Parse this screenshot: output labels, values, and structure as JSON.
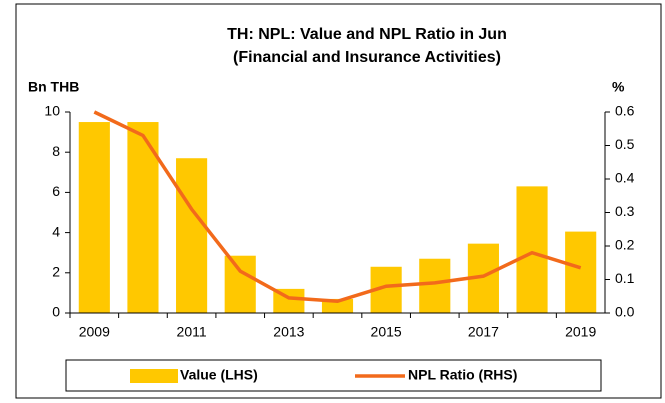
{
  "chart_data": {
    "type": "bar_line",
    "title": "TH: NPL: Value and NPL Ratio in Jun",
    "subtitle": "(Financial and Insurance Activities)",
    "y_label": "Bn THB",
    "y2_label": "%",
    "categories": [
      "2009",
      null,
      "2011",
      null,
      "2013",
      null,
      "2015",
      null,
      "2017",
      null,
      "2019"
    ],
    "series": [
      {
        "name": "Value (LHS)",
        "type": "bar",
        "color": "#FFC800",
        "values": [
          9.5,
          9.5,
          7.7,
          2.85,
          1.2,
          0.7,
          2.3,
          2.7,
          3.45,
          6.3,
          4.05
        ]
      },
      {
        "name": "NPL Ratio (RHS)",
        "type": "line",
        "axis": "y2",
        "color": "#F26A1B",
        "values": [
          0.6,
          0.53,
          0.31,
          0.125,
          0.045,
          0.035,
          0.08,
          0.09,
          0.11,
          0.18,
          0.135
        ]
      }
    ],
    "ylim": [
      0,
      10
    ],
    "yticks": [
      0,
      2,
      4,
      6,
      8,
      10
    ],
    "y2lim": [
      0,
      0.6
    ],
    "y2ticks": [
      {
        "value": 0,
        "label": "0.0"
      },
      0.1,
      0.2,
      0.3,
      0.4,
      0.5,
      0.6
    ],
    "grid": false,
    "legend": "bottom"
  }
}
